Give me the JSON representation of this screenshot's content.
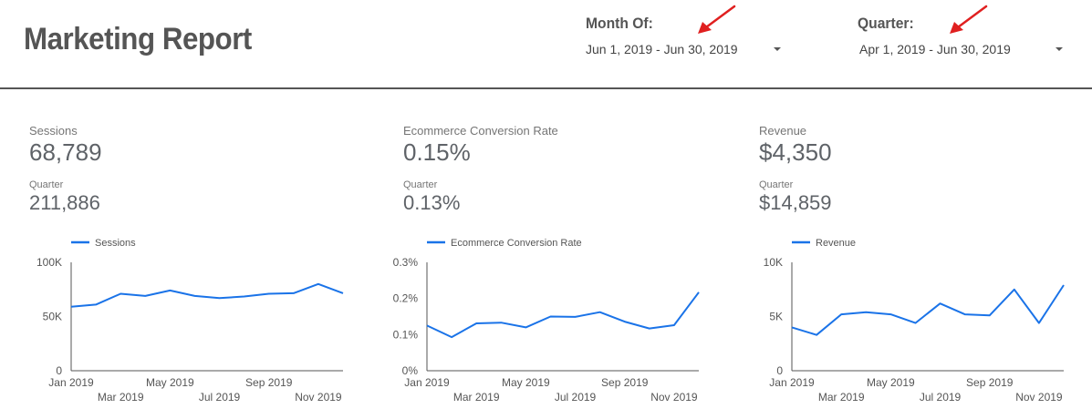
{
  "header": {
    "title": "Marketing Report",
    "month_filter": {
      "label": "Month Of:",
      "value": "Jun 1, 2019 - Jun 30, 2019"
    },
    "quarter_filter": {
      "label": "Quarter:",
      "value": "Apr 1, 2019 - Jun 30, 2019"
    }
  },
  "colors": {
    "series": "#1a73e8",
    "arrow": "#e02020",
    "divider": "#555555"
  },
  "kpis": [
    {
      "label": "Sessions",
      "value": "68,789",
      "quarter_label": "Quarter",
      "quarter_value": "211,886"
    },
    {
      "label": "Ecommerce Conversion Rate",
      "value": "0.15%",
      "quarter_label": "Quarter",
      "quarter_value": "0.13%"
    },
    {
      "label": "Revenue",
      "value": "$4,350",
      "quarter_label": "Quarter",
      "quarter_value": "$14,859"
    }
  ],
  "chart_data": [
    {
      "type": "line",
      "legend": "top-left",
      "x_ticks_row1": [
        "Jan 2019",
        "May 2019",
        "Sep 2019"
      ],
      "x_ticks_row2": [
        "Mar 2019",
        "Jul 2019",
        "Nov 2019"
      ],
      "x": [
        "Jan 2019",
        "Feb 2019",
        "Mar 2019",
        "Apr 2019",
        "May 2019",
        "Jun 2019",
        "Jul 2019",
        "Aug 2019",
        "Sep 2019",
        "Oct 2019",
        "Nov 2019",
        "Dec 2019"
      ],
      "y_ticks": [
        "100K",
        "50K",
        "0"
      ],
      "ylim": [
        0,
        100000
      ],
      "series": [
        {
          "name": "Sessions",
          "values": [
            59000,
            61000,
            71000,
            69000,
            74000,
            69000,
            67000,
            68500,
            71000,
            71500,
            80000,
            71500
          ]
        }
      ]
    },
    {
      "type": "line",
      "legend": "top-left",
      "x_ticks_row1": [
        "Jan 2019",
        "May 2019",
        "Sep 2019"
      ],
      "x_ticks_row2": [
        "Mar 2019",
        "Jul 2019",
        "Nov 2019"
      ],
      "x": [
        "Jan 2019",
        "Feb 2019",
        "Mar 2019",
        "Apr 2019",
        "May 2019",
        "Jun 2019",
        "Jul 2019",
        "Aug 2019",
        "Sep 2019",
        "Oct 2019",
        "Nov 2019",
        "Dec 2019"
      ],
      "y_ticks": [
        "0.3%",
        "0.2%",
        "0.1%",
        "0%"
      ],
      "ylim": [
        0,
        0.3
      ],
      "series": [
        {
          "name": "Ecommerce Conversion Rate",
          "values": [
            0.125,
            0.093,
            0.131,
            0.133,
            0.12,
            0.15,
            0.149,
            0.162,
            0.136,
            0.117,
            0.126,
            0.217
          ]
        }
      ]
    },
    {
      "type": "line",
      "legend": "top-left",
      "x_ticks_row1": [
        "Jan 2019",
        "May 2019",
        "Sep 2019"
      ],
      "x_ticks_row2": [
        "Mar 2019",
        "Jul 2019",
        "Nov 2019"
      ],
      "x": [
        "Jan 2019",
        "Feb 2019",
        "Mar 2019",
        "Apr 2019",
        "May 2019",
        "Jun 2019",
        "Jul 2019",
        "Aug 2019",
        "Sep 2019",
        "Oct 2019",
        "Nov 2019",
        "Dec 2019"
      ],
      "y_ticks": [
        "10K",
        "5K",
        "0"
      ],
      "ylim": [
        0,
        10000
      ],
      "series": [
        {
          "name": "Revenue",
          "values": [
            4000,
            3300,
            5200,
            5400,
            5200,
            4400,
            6200,
            5200,
            5100,
            7500,
            4400,
            7900
          ]
        }
      ]
    }
  ]
}
